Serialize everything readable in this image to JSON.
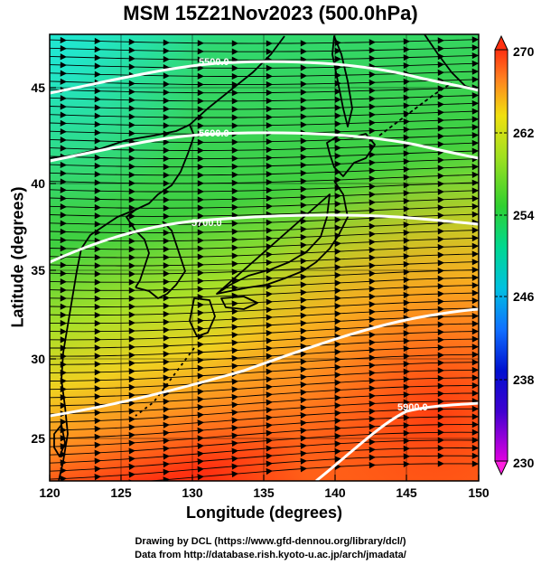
{
  "title": "MSM 15Z21Nov2023 (500.0hPa)",
  "x_axis": {
    "label": "Longitude (degrees)",
    "ticks": [
      "120",
      "125",
      "130",
      "135",
      "140",
      "145",
      "150"
    ]
  },
  "y_axis": {
    "label": "Latitude  (degrees)",
    "ticks": [
      "25",
      "30",
      "35",
      "40",
      "45"
    ]
  },
  "colorbar": {
    "ticks": [
      "270",
      "262",
      "254",
      "246",
      "238",
      "230"
    ],
    "min": 230,
    "max": 270,
    "colors": [
      "#e000e0",
      "#0000d0",
      "#1e90ff",
      "#00e0d0",
      "#00d060",
      "#40d030",
      "#a0e020",
      "#e0e010",
      "#ffa020",
      "#ff4020"
    ]
  },
  "contours": [
    {
      "label": "5500.0"
    },
    {
      "label": "5600.0"
    },
    {
      "label": "5700.0"
    },
    {
      "label": "5900.0"
    }
  ],
  "credits": {
    "line1": "Drawing by DCL (https://www.gfd-dennou.org/library/dcl/)",
    "line2": "Data from http://database.rish.kyoto-u.ac.jp/arch/jmadata/"
  }
}
